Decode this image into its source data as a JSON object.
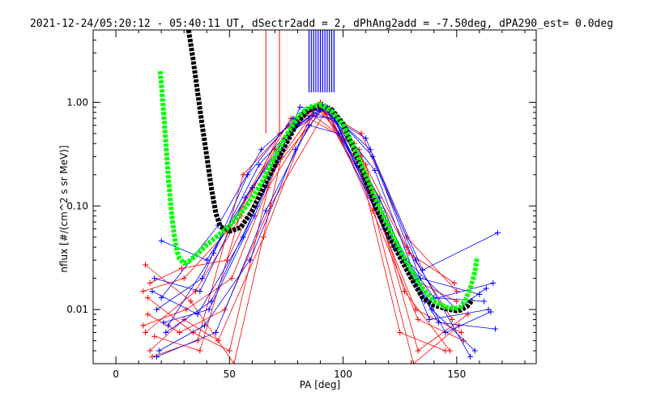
{
  "chart_data": {
    "type": "scatter",
    "title": "2021-12-24/05:20:12 - 05:40:11 UT, dSectr2add = 2, dPhAng2add = -7.50deg, dPA290_est=   0.0deg",
    "xlabel": "PA [deg]",
    "ylabel": "nflux [#/(cm^2 s sr MeV)]",
    "xlim": [
      -10,
      185
    ],
    "ylim": [
      0.003,
      5
    ],
    "yscale": "log",
    "x_ticks": [
      0,
      50,
      100,
      150
    ],
    "x_tick_labels": [
      "0",
      "50",
      "100",
      "150"
    ],
    "y_ticks": [
      0.01,
      0.1,
      1.0
    ],
    "y_tick_labels": [
      "0.01",
      "0.10",
      "1.00"
    ],
    "grid": false,
    "legend": "none",
    "colors": {
      "red": "#ff0000",
      "blue": "#0000ff",
      "green": "#00ff00",
      "black": "#000000",
      "axis": "#000000"
    },
    "series": [
      {
        "color": "#000000",
        "style": "thick-dotted",
        "x": [
          32,
          34,
          36,
          38,
          40,
          42,
          44,
          46,
          50,
          55,
          60,
          65,
          70,
          75,
          80,
          85,
          90,
          95,
          100,
          105,
          110,
          115,
          120,
          125,
          130,
          135,
          140,
          145,
          150,
          152,
          155,
          157
        ],
        "y": [
          5.0,
          2.6,
          1.25,
          0.6,
          0.3,
          0.15,
          0.085,
          0.063,
          0.057,
          0.062,
          0.09,
          0.15,
          0.25,
          0.4,
          0.65,
          0.85,
          0.92,
          0.85,
          0.62,
          0.34,
          0.18,
          0.09,
          0.052,
          0.032,
          0.02,
          0.013,
          0.011,
          0.0102,
          0.0097,
          0.0099,
          0.0109,
          0.0125
        ]
      },
      {
        "color": "#00ff00",
        "style": "thick-dotted",
        "x": [
          19.5,
          20,
          21,
          22,
          23,
          24,
          25,
          26,
          27,
          28,
          30,
          32,
          35,
          40,
          45,
          50,
          55,
          60,
          65,
          70,
          75,
          80,
          85,
          90,
          95,
          100,
          105,
          110,
          115,
          120,
          125,
          130,
          135,
          140,
          145,
          150,
          152,
          154,
          156,
          158,
          159
        ],
        "y": [
          2.0,
          1.5,
          0.8,
          0.4,
          0.2,
          0.11,
          0.068,
          0.047,
          0.036,
          0.031,
          0.028,
          0.029,
          0.033,
          0.042,
          0.052,
          0.064,
          0.085,
          0.12,
          0.18,
          0.3,
          0.48,
          0.72,
          0.9,
          0.95,
          0.82,
          0.6,
          0.36,
          0.2,
          0.11,
          0.063,
          0.038,
          0.024,
          0.016,
          0.012,
          0.0105,
          0.0103,
          0.0107,
          0.0125,
          0.016,
          0.023,
          0.032
        ]
      }
    ],
    "measurement_curves": {
      "red": [
        {
          "x": [
            12,
            30,
            50,
            70,
            90,
            110,
            130,
            150
          ],
          "y": [
            0.015,
            0.02,
            0.06,
            0.35,
            0.95,
            0.2,
            0.02,
            0.012
          ]
        },
        {
          "x": [
            13,
            35,
            55,
            72,
            88,
            108,
            128,
            148
          ],
          "y": [
            0.006,
            0.015,
            0.08,
            0.5,
            0.9,
            0.3,
            0.04,
            0.008
          ]
        },
        {
          "x": [
            14,
            28,
            48,
            68,
            92,
            112,
            132,
            152
          ],
          "y": [
            0.009,
            0.006,
            0.01,
            0.1,
            0.8,
            0.12,
            0.01,
            0.006
          ]
        },
        {
          "x": [
            15,
            30,
            45,
            65,
            85,
            105,
            125,
            145
          ],
          "y": [
            0.004,
            0.008,
            0.005,
            0.05,
            0.7,
            0.4,
            0.006,
            0.004
          ]
        },
        {
          "x": [
            13,
            33,
            52,
            73,
            90,
            110,
            133,
            155
          ],
          "y": [
            0.027,
            0.012,
            0.003,
            0.3,
            1.0,
            0.25,
            0.004,
            0.009
          ]
        },
        {
          "x": [
            16,
            36,
            56,
            76,
            88,
            108,
            128,
            150
          ],
          "y": [
            0.0035,
            0.005,
            0.2,
            0.6,
            0.92,
            0.5,
            0.05,
            0.015
          ]
        },
        {
          "x": [
            12,
            31,
            51,
            71,
            91,
            111,
            131,
            151
          ],
          "y": [
            0.007,
            0.01,
            0.02,
            0.25,
            0.85,
            0.15,
            0.003,
            0.007
          ]
        },
        {
          "x": [
            14,
            34,
            50,
            67,
            87,
            107,
            127,
            147
          ],
          "y": [
            0.013,
            0.006,
            0.004,
            0.15,
            0.75,
            0.35,
            0.015,
            0.004
          ]
        },
        {
          "x": [
            17,
            37,
            57,
            77,
            93,
            113,
            133,
            153
          ],
          "y": [
            0.0055,
            0.004,
            0.12,
            0.7,
            0.9,
            0.09,
            0.008,
            0.005
          ]
        },
        {
          "x": [
            15,
            29,
            49,
            74,
            89,
            109,
            129,
            149
          ],
          "y": [
            0.018,
            0.025,
            0.03,
            0.45,
            0.95,
            0.22,
            0.035,
            0.018
          ]
        }
      ],
      "blue": [
        {
          "x": [
            20,
            40,
            60,
            80,
            92,
            112,
            135,
            168
          ],
          "y": [
            0.046,
            0.03,
            0.15,
            0.6,
            0.9,
            0.35,
            0.024,
            0.055
          ]
        },
        {
          "x": [
            18,
            38,
            58,
            78,
            91,
            114,
            136,
            166
          ],
          "y": [
            0.01,
            0.02,
            0.2,
            0.7,
            0.95,
            0.22,
            0.012,
            0.018
          ]
        },
        {
          "x": [
            22,
            42,
            62,
            82,
            94,
            116,
            138,
            164
          ],
          "y": [
            0.006,
            0.012,
            0.1,
            0.8,
            0.88,
            0.12,
            0.008,
            0.01
          ]
        },
        {
          "x": [
            16,
            36,
            56,
            76,
            93,
            113,
            134,
            160
          ],
          "y": [
            0.015,
            0.009,
            0.05,
            0.5,
            0.9,
            0.3,
            0.02,
            0.014
          ]
        },
        {
          "x": [
            19,
            39,
            59,
            79,
            90,
            110,
            132,
            156
          ],
          "y": [
            0.004,
            0.007,
            0.03,
            0.35,
            0.85,
            0.45,
            0.03,
            0.0035
          ]
        },
        {
          "x": [
            21,
            41,
            61,
            81,
            95,
            117,
            139,
            158
          ],
          "y": [
            0.0075,
            0.01,
            0.08,
            0.9,
            0.8,
            0.08,
            0.01,
            0.004
          ]
        },
        {
          "x": [
            17,
            37,
            57,
            77,
            92,
            118,
            140,
            162
          ],
          "y": [
            0.02,
            0.015,
            0.12,
            0.55,
            0.92,
            0.06,
            0.013,
            0.012
          ]
        },
        {
          "x": [
            23,
            43,
            63,
            83,
            96,
            120,
            142,
            167
          ],
          "y": [
            0.007,
            0.035,
            0.25,
            0.75,
            0.7,
            0.05,
            0.0075,
            0.0065
          ]
        },
        {
          "x": [
            18,
            44,
            66,
            85,
            98,
            115,
            145,
            165
          ],
          "y": [
            0.0035,
            0.006,
            0.09,
            0.6,
            0.5,
            0.11,
            0.006,
            0.0095
          ]
        },
        {
          "x": [
            20,
            45,
            64,
            84,
            97,
            122,
            150,
            163
          ],
          "y": [
            0.013,
            0.065,
            0.35,
            0.85,
            0.65,
            0.04,
            0.01,
            0.016
          ]
        }
      ],
      "red_spikes_x": [
        66,
        72
      ],
      "blue_spikes_x": [
        85,
        86,
        87,
        88,
        89,
        90,
        91,
        92,
        93,
        94,
        95,
        96
      ]
    }
  }
}
